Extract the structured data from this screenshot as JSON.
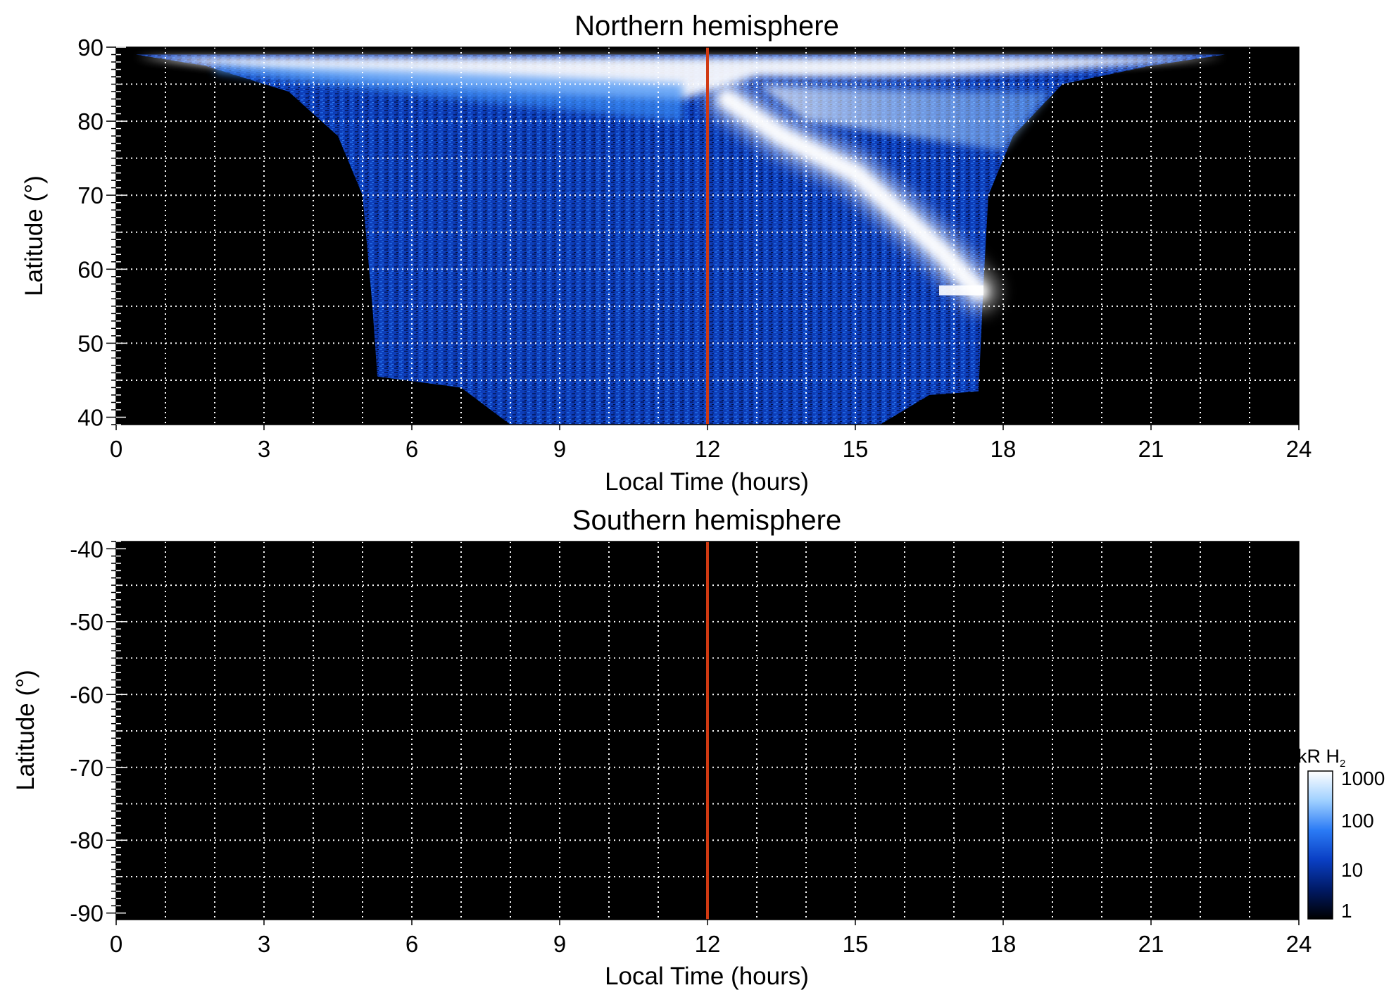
{
  "figure": {
    "colorbar": {
      "title": "kR H",
      "title_subscript": "2",
      "ticks": [
        "1",
        "10",
        "100",
        "1000"
      ],
      "scale": "log",
      "range": [
        1,
        1000
      ],
      "colors": [
        "#000000",
        "#001a66",
        "#0a3fc4",
        "#2b7bf5",
        "#9fd0ff",
        "#ffffff"
      ]
    },
    "meridian_line_color": "#d13a12",
    "grid": "dotted white"
  },
  "chart_data": [
    {
      "type": "heatmap",
      "title": "Northern hemisphere",
      "xlabel": "Local Time (hours)",
      "ylabel": "Latitude (°)",
      "xlim": [
        0,
        24
      ],
      "ylim": [
        39,
        90
      ],
      "xticks": [
        "0",
        "3",
        "6",
        "9",
        "12",
        "15",
        "18",
        "21",
        "24"
      ],
      "yticks": [
        "40",
        "50",
        "60",
        "70",
        "80",
        "90"
      ],
      "ytick_values": [
        40,
        50,
        60,
        70,
        80,
        90
      ],
      "gridlines_x": [
        1,
        2,
        3,
        4,
        5,
        6,
        7,
        8,
        9,
        10,
        11,
        12,
        13,
        14,
        15,
        16,
        17,
        18,
        19,
        20,
        21,
        22,
        23
      ],
      "gridlines_y": [
        45,
        50,
        55,
        60,
        65,
        70,
        75,
        80,
        85
      ],
      "reference_line_x": 12,
      "emission_region": {
        "boundary_left": [
          [
            0.4,
            89
          ],
          [
            1.8,
            87.5
          ],
          [
            3.5,
            84
          ],
          [
            4.5,
            78
          ],
          [
            5.0,
            70
          ],
          [
            5.2,
            55
          ],
          [
            5.3,
            45.5
          ]
        ],
        "boundary_right": [
          [
            22.5,
            89
          ],
          [
            21.0,
            87.5
          ],
          [
            19.2,
            85
          ],
          [
            18.2,
            78
          ],
          [
            17.7,
            70
          ],
          [
            17.6,
            58
          ],
          [
            17.5,
            43.5
          ]
        ],
        "bottom_edge": [
          [
            5.3,
            45.5
          ],
          [
            7.0,
            44
          ],
          [
            8.0,
            39
          ],
          [
            15.5,
            39
          ],
          [
            16.5,
            43
          ],
          [
            17.5,
            43.5
          ]
        ]
      },
      "bright_arc": [
        [
          12.4,
          83
        ],
        [
          13.5,
          78
        ],
        [
          15,
          73
        ],
        [
          16,
          67
        ],
        [
          16.8,
          62
        ],
        [
          17.5,
          57
        ]
      ],
      "values_kR": {
        "background": 1,
        "region_low": 10,
        "region_mid": 100,
        "bright_arc": 1000,
        "polar_cap": 1000
      }
    },
    {
      "type": "heatmap",
      "title": "Southern hemisphere",
      "xlabel": "Local Time (hours)",
      "ylabel": "Latitude (°)",
      "xlim": [
        0,
        24
      ],
      "ylim": [
        -90.9,
        -39
      ],
      "xticks": [
        "0",
        "3",
        "6",
        "9",
        "12",
        "15",
        "18",
        "21",
        "24"
      ],
      "yticks": [
        "-40",
        "-50",
        "-60",
        "-70",
        "-80",
        "-90"
      ],
      "ytick_values": [
        -40,
        -50,
        -60,
        -70,
        -80,
        -90
      ],
      "gridlines_x": [
        1,
        2,
        3,
        4,
        5,
        6,
        7,
        8,
        9,
        10,
        11,
        12,
        13,
        14,
        15,
        16,
        17,
        18,
        19,
        20,
        21,
        22,
        23
      ],
      "gridlines_y": [
        -45,
        -50,
        -55,
        -60,
        -65,
        -70,
        -75,
        -80,
        -85
      ],
      "reference_line_x": 12,
      "values_kR": {
        "background": 1
      }
    }
  ]
}
